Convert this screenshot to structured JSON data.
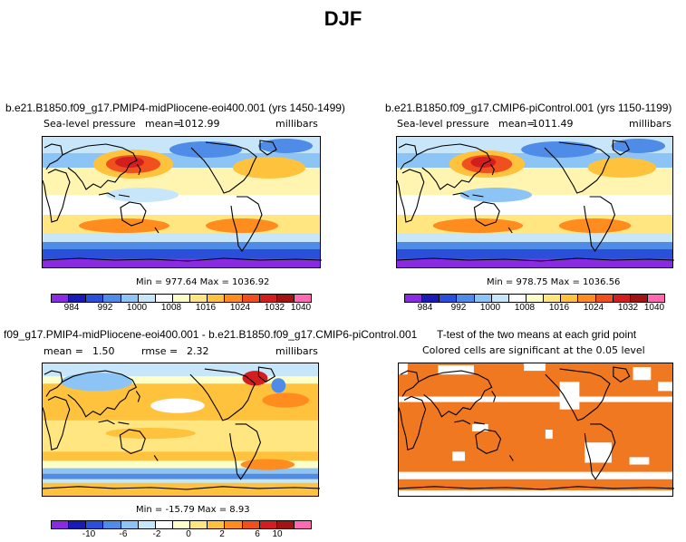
{
  "title": "DJF",
  "panels": {
    "p1": {
      "title": "b.e21.B1850.f09_g17.PMIP4-midPliocene-eoi400.001 (yrs 1450-1499)",
      "var_label": "Sea-level pressure",
      "stat_label": "mean=",
      "stat_value": "1012.99",
      "units": "millibars",
      "minmax": "Min = 977.64 Max = 1036.92"
    },
    "p2": {
      "title": "b.e21.B1850.f09_g17.CMIP6-piControl.001 (yrs 1150-1199)",
      "var_label": "Sea-level pressure",
      "stat_label": "mean=",
      "stat_value": "1011.49",
      "units": "millibars",
      "minmax": "Min = 978.75 Max = 1036.56"
    },
    "p3": {
      "title": "f09_g17.PMIP4-midPliocene-eoi400.001 - b.e21.B1850.f09_g17.CMIP6-piControl.001",
      "mean_label": "mean =",
      "mean_value": "1.50",
      "rmse_label": "rmse =",
      "rmse_value": "2.32",
      "units": "millibars",
      "minmax": "Min = -15.79 Max = 8.93"
    },
    "p4": {
      "title": "T-test of the two means at each grid point",
      "subtitle": "Colored cells are significant at the 0.05 level"
    }
  },
  "colorbars": {
    "abs": {
      "colors": [
        "#8a2be2",
        "#1a1ab4",
        "#2a4fd8",
        "#4e8ce8",
        "#8cc4f5",
        "#c8e6fa",
        "#ffffff",
        "#ffffc8",
        "#ffe680",
        "#ffc23c",
        "#ff8c1e",
        "#f0501e",
        "#d21e1e",
        "#a01414",
        "#ff69b4"
      ],
      "tick_labels": [
        "984",
        "992",
        "1000",
        "1008",
        "1016",
        "1024",
        "1032",
        "1040"
      ]
    },
    "diff": {
      "colors": [
        "#8a2be2",
        "#1a1ab4",
        "#2a4fd8",
        "#4e8ce8",
        "#8cc4f5",
        "#c8e6fa",
        "#ffffff",
        "#ffffc8",
        "#ffe680",
        "#ffc23c",
        "#ff8c1e",
        "#f0501e",
        "#d21e1e",
        "#a01414",
        "#ff69b4"
      ],
      "tick_labels": [
        "-10",
        "-6",
        "-2",
        "0",
        "2",
        "6",
        "10"
      ]
    }
  },
  "chart_data": [
    {
      "type": "heatmap",
      "title": "b.e21.B1850.f09_g17.PMIP4-midPliocene-eoi400.001 (yrs 1450-1499)",
      "variable": "Sea-level pressure",
      "units": "millibars",
      "mean": 1012.99,
      "min": 977.64,
      "max": 1036.92,
      "levels": [
        984,
        988,
        992,
        996,
        1000,
        1004,
        1008,
        1012,
        1016,
        1020,
        1024,
        1028,
        1032,
        1036,
        1040
      ]
    },
    {
      "type": "heatmap",
      "title": "b.e21.B1850.f09_g17.CMIP6-piControl.001 (yrs 1150-1199)",
      "variable": "Sea-level pressure",
      "units": "millibars",
      "mean": 1011.49,
      "min": 978.75,
      "max": 1036.56,
      "levels": [
        984,
        988,
        992,
        996,
        1000,
        1004,
        1008,
        1012,
        1016,
        1020,
        1024,
        1028,
        1032,
        1036,
        1040
      ]
    },
    {
      "type": "heatmap",
      "title": "f09_g17.PMIP4-midPliocene-eoi400.001 - b.e21.B1850.f09_g17.CMIP6-piControl.001",
      "units": "millibars",
      "mean": 1.5,
      "rmse": 2.32,
      "min": -15.79,
      "max": 8.93,
      "levels": [
        -10,
        -8,
        -6,
        -4,
        -2,
        -1,
        0,
        1,
        2,
        4,
        6,
        8,
        10
      ]
    },
    {
      "type": "heatmap",
      "title": "T-test of the two means at each grid point",
      "subtitle": "Colored cells are significant at the 0.05 level",
      "significant_color": "#f07820"
    }
  ]
}
